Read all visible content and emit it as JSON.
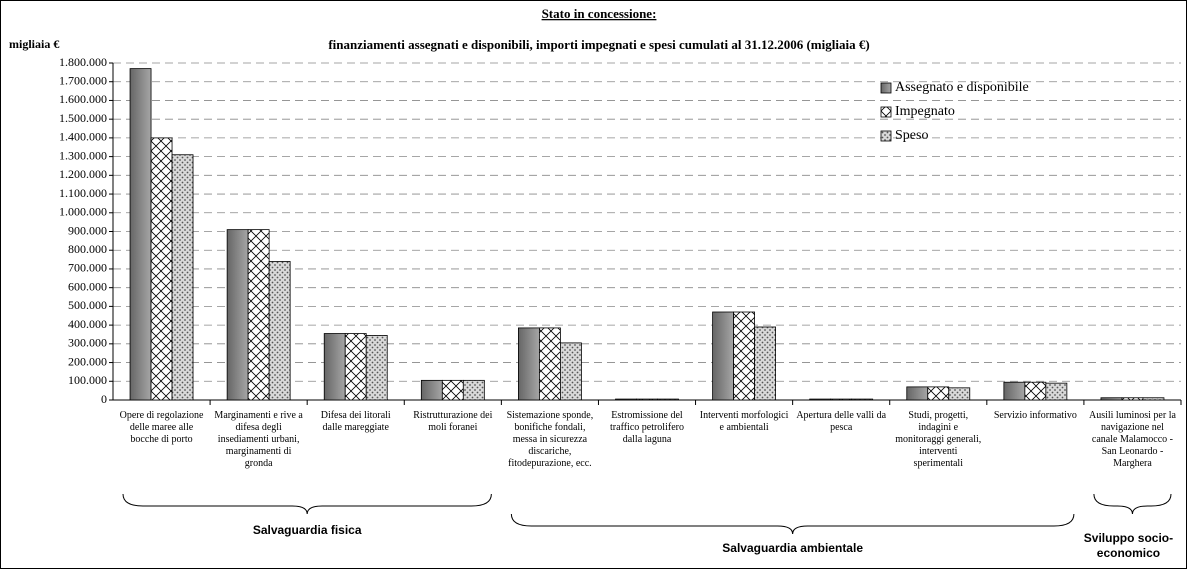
{
  "chart_data": {
    "type": "bar",
    "title": "Stato in concessione:",
    "subtitle": "finanziamenti assegnati e disponibili, importi impegnati e spesi cumulati al 31.12.2006 (migliaia €)",
    "y_label": "migliaia €",
    "categories": [
      "Opere di regolazione delle maree alle bocche di porto",
      "Marginamenti e rive a difesa degli insediamenti urbani, marginamenti di gronda",
      "Difesa dei litorali dalle mareggiate",
      "Ristrutturazione dei moli foranei",
      "Sistemazione sponde, bonifiche fondali, messa in sicurezza discariche, fitodepurazione, ecc.",
      "Estromissione del traffico petrolifero dalla laguna",
      "Interventi morfologici e ambientali",
      "Apertura delle valli da pesca",
      "Studi, progetti, indagini e monitoraggi generali, interventi sperimentali",
      "Servizio informativo",
      "Ausili luminosi per la navigazione nel canale Malamocco - San Leonardo - Marghera"
    ],
    "groups": [
      "Salvaguardia fisica",
      "Salvaguardia ambientale",
      "Sviluppo socio-economico"
    ],
    "series": [
      {
        "name": "Assegnato e disponibile",
        "color": "#a6a6a6",
        "values": [
          1770000,
          910000,
          355000,
          105000,
          385000,
          5000,
          470000,
          5000,
          70000,
          95000,
          12000
        ]
      },
      {
        "name": "Impegnato",
        "color": "#ffffff",
        "values": [
          1400000,
          910000,
          355000,
          105000,
          385000,
          5000,
          470000,
          5000,
          70000,
          95000,
          12000
        ]
      },
      {
        "name": "Speso",
        "color": "#d9d9d9",
        "values": [
          1310000,
          740000,
          345000,
          105000,
          305000,
          5000,
          390000,
          5000,
          65000,
          90000,
          12000
        ]
      }
    ],
    "ylim": [
      0,
      1800000
    ],
    "yticks": [
      0,
      {
        "value": 100000,
        "label": "100.000"
      },
      {
        "value": 200000,
        "label": "200.000"
      },
      {
        "value": 300000,
        "label": "300.000"
      },
      {
        "value": 400000,
        "label": "400.000"
      },
      {
        "value": 500000,
        "label": "500.000"
      },
      {
        "value": 600000,
        "label": "600.000"
      },
      {
        "value": 700000,
        "label": "700.000"
      },
      {
        "value": 800000,
        "label": "800.000"
      },
      {
        "value": 900000,
        "label": "900.000"
      },
      {
        "value": 1000000,
        "label": "1.000.000"
      },
      {
        "value": 1100000,
        "label": "1.100.000"
      },
      {
        "value": 1200000,
        "label": "1.200.000"
      },
      {
        "value": 1300000,
        "label": "1.300.000"
      },
      {
        "value": 1400000,
        "label": "1.400.000"
      },
      {
        "value": 1500000,
        "label": "1.500.000"
      },
      {
        "value": 1600000,
        "label": "1.600.000"
      },
      {
        "value": 1700000,
        "label": "1.700.000"
      },
      {
        "value": 1800000,
        "label": "1.800.000"
      }
    ],
    "grid": true,
    "legend": "top-right"
  }
}
